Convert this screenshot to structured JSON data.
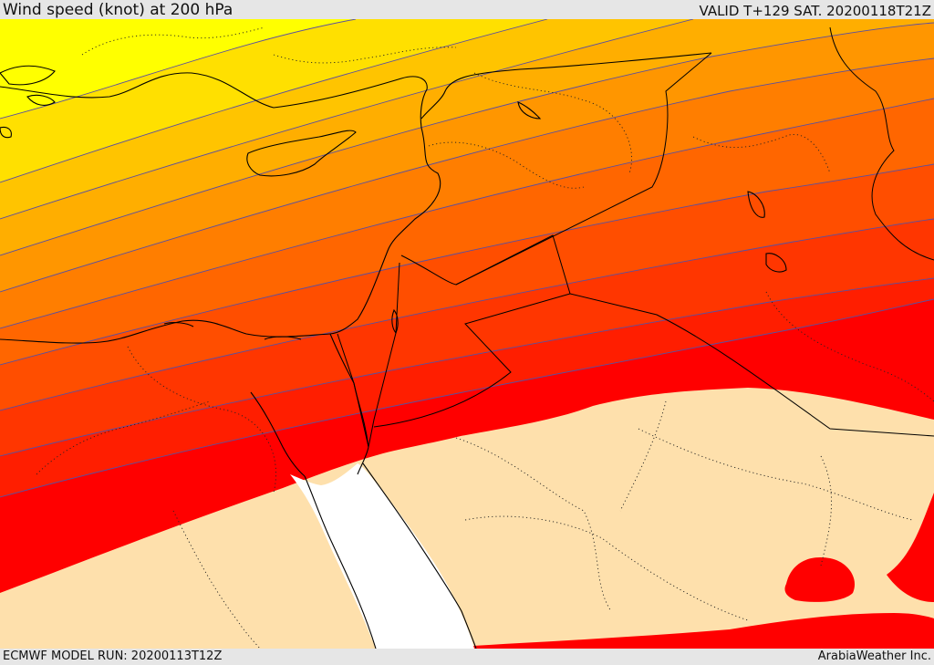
{
  "header": {
    "title": "Wind speed (knot) at 200 hPa",
    "valid": "VALID T+129 SAT. 20200118T21Z"
  },
  "footer": {
    "model_run": "ECMWF MODEL RUN: 20200113T12Z",
    "credit": "ArabiaWeather Inc."
  },
  "map": {
    "colors": {
      "band_1": "#ffff00",
      "band_2": "#ffe000",
      "band_3": "#ffc400",
      "band_4": "#ffae00",
      "band_5": "#ff9600",
      "band_6": "#ff7e00",
      "band_7": "#ff6600",
      "band_8": "#ff4e00",
      "band_9": "#ff3600",
      "band_10": "#ff1e00",
      "band_11": "#ff0000",
      "low_speed": "#fee0ac",
      "sea": "#ffffff",
      "coast": "#000000",
      "contour": "#5a4fa0"
    }
  }
}
